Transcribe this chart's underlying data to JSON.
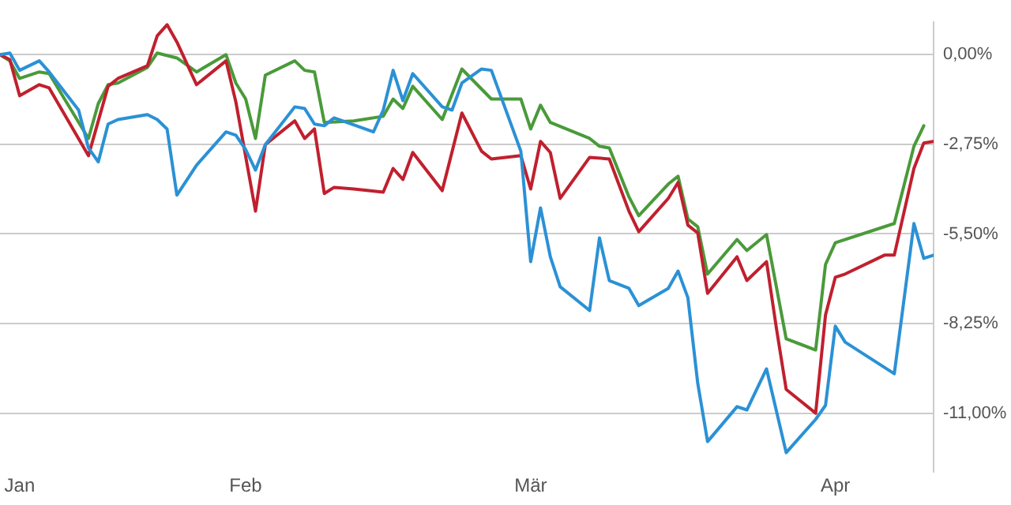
{
  "chart_data": {
    "type": "line",
    "xlim": [
      "--01-07",
      "--04-11"
    ],
    "xticks": [
      {
        "value": "--01-09",
        "label": "Jan"
      },
      {
        "value": "--02-01",
        "label": "Feb"
      },
      {
        "value": "--03-01",
        "label": "Mär"
      },
      {
        "value": "--04-01",
        "label": "Apr"
      }
    ],
    "ylim": [
      -12.8,
      1.0
    ],
    "yticks": [
      {
        "value": 0,
        "label": "0,00%"
      },
      {
        "value": -2.75,
        "label": "-2,75%"
      },
      {
        "value": -5.5,
        "label": "-5,50%"
      },
      {
        "value": -8.25,
        "label": "-8,25%"
      },
      {
        "value": -11,
        "label": "-11,00%"
      }
    ],
    "grid": "y",
    "legend": false,
    "marker": "none",
    "line_style": "solid",
    "series": [
      {
        "color": "#2b91d5",
        "x": [
          "--01-07",
          "--01-08",
          "--01-09",
          "--01-11",
          "--01-12",
          "--01-15",
          "--01-16",
          "--01-17",
          "--01-18",
          "--01-19",
          "--01-22",
          "--01-23",
          "--01-24",
          "--01-25",
          "--01-27",
          "--01-30",
          "--01-31",
          "--02-01",
          "--02-02",
          "--02-03",
          "--02-06",
          "--02-07",
          "--02-08",
          "--02-09",
          "--02-10",
          "--02-14",
          "--02-15",
          "--02-16",
          "--02-17",
          "--02-18",
          "--02-21",
          "--02-22",
          "--02-23",
          "--02-25",
          "--02-26",
          "--02-29",
          "--03-01",
          "--03-02",
          "--03-03",
          "--03-04",
          "--03-07",
          "--03-08",
          "--03-09",
          "--03-11",
          "--03-12",
          "--03-15",
          "--03-16",
          "--03-17",
          "--03-18",
          "--03-19",
          "--03-22",
          "--03-23",
          "--03-25",
          "--03-27",
          "--03-30",
          "--03-31",
          "--04-01",
          "--04-02",
          "--04-07",
          "--04-09",
          "--04-10",
          "--04-11"
        ],
        "values": [
          0,
          0.05,
          -0.48,
          -0.19,
          -0.53,
          -1.7,
          -2.86,
          -3.29,
          -2.13,
          -1.99,
          -1.84,
          -1.99,
          -2.28,
          -4.31,
          -3.39,
          -2.37,
          -2.47,
          -2.91,
          -3.54,
          -2.76,
          -1.6,
          -1.65,
          -2.13,
          -2.18,
          -1.94,
          -2.37,
          -1.7,
          -0.48,
          -1.41,
          -0.58,
          -1.6,
          -1.7,
          -0.87,
          -0.44,
          -0.48,
          -2.96,
          -6.35,
          -4.7,
          -6.2,
          -7.12,
          -7.85,
          -5.62,
          -6.93,
          -7.17,
          -7.7,
          -7.17,
          -6.64,
          -7.46,
          -10.08,
          -11.87,
          -10.8,
          -10.9,
          -9.64,
          -12.21,
          -11.19,
          -10.76,
          -8.33,
          -8.82,
          -9.79,
          -5.18,
          -6.25,
          -6.15
        ]
      },
      {
        "color": "#c0202e",
        "x": [
          "--01-07",
          "--01-08",
          "--01-09",
          "--01-11",
          "--01-12",
          "--01-16",
          "--01-18",
          "--01-19",
          "--01-22",
          "--01-23",
          "--01-24",
          "--01-25",
          "--01-27",
          "--01-30",
          "--01-31",
          "--02-02",
          "--02-03",
          "--02-06",
          "--02-07",
          "--02-08",
          "--02-09",
          "--02-10",
          "--02-12",
          "--02-15",
          "--02-16",
          "--02-17",
          "--02-18",
          "--02-21",
          "--02-23",
          "--02-25",
          "--02-26",
          "--02-29",
          "--03-01",
          "--03-02",
          "--03-03",
          "--03-04",
          "--03-07",
          "--03-09",
          "--03-11",
          "--03-12",
          "--03-15",
          "--03-16",
          "--03-17",
          "--03-18",
          "--03-19",
          "--03-22",
          "--03-23",
          "--03-25",
          "--03-26",
          "--03-27",
          "--03-30",
          "--03-31",
          "--04-01",
          "--04-02",
          "--04-06",
          "--04-07",
          "--04-09",
          "--04-10",
          "--04-11"
        ],
        "values": [
          0,
          -0.15,
          -1.26,
          -0.92,
          -1.02,
          -3.1,
          -0.97,
          -0.73,
          -0.34,
          0.58,
          0.92,
          0.39,
          -0.92,
          -0.19,
          -1.45,
          -4.8,
          -2.76,
          -2.03,
          -2.57,
          -2.28,
          -4.26,
          -4.07,
          -4.12,
          -4.22,
          -3.49,
          -3.83,
          -3.0,
          -4.17,
          -1.79,
          -2.96,
          -3.2,
          -3.1,
          -4.12,
          -2.66,
          -3.0,
          -4.41,
          -3.15,
          -3.2,
          -4.8,
          -5.43,
          -4.41,
          -3.92,
          -5.23,
          -5.47,
          -7.32,
          -6.2,
          -6.93,
          -6.35,
          -8.38,
          -10.27,
          -11.0,
          -7.99,
          -6.83,
          -6.73,
          -6.15,
          -6.15,
          -3.49,
          -2.71,
          -2.66
        ]
      },
      {
        "color": "#4a9a3a",
        "x": [
          "--01-07",
          "--01-08",
          "--01-09",
          "--01-11",
          "--01-12",
          "--01-16",
          "--01-17",
          "--01-18",
          "--01-19",
          "--01-22",
          "--01-23",
          "--01-25",
          "--01-27",
          "--01-30",
          "--01-31",
          "--02-01",
          "--02-02",
          "--02-03",
          "--02-06",
          "--02-07",
          "--02-08",
          "--02-09",
          "--02-12",
          "--02-15",
          "--02-16",
          "--02-17",
          "--02-18",
          "--02-21",
          "--02-23",
          "--02-26",
          "--02-29",
          "--03-01",
          "--03-02",
          "--03-03",
          "--03-07",
          "--03-08",
          "--03-09",
          "--03-11",
          "--03-12",
          "--03-15",
          "--03-16",
          "--03-17",
          "--03-18",
          "--03-19",
          "--03-22",
          "--03-23",
          "--03-25",
          "--03-27",
          "--03-30",
          "--03-31",
          "--04-01",
          "--04-07",
          "--04-09",
          "--04-10"
        ],
        "values": [
          0,
          -0.19,
          -0.73,
          -0.53,
          -0.58,
          -2.57,
          -1.5,
          -0.92,
          -0.87,
          -0.39,
          0.05,
          -0.1,
          -0.53,
          0,
          -0.87,
          -1.36,
          -2.57,
          -0.63,
          -0.19,
          -0.48,
          -0.53,
          -2.08,
          -2.03,
          -1.89,
          -1.36,
          -1.65,
          -0.97,
          -1.99,
          -0.44,
          -1.36,
          -1.36,
          -2.28,
          -1.55,
          -2.08,
          -2.57,
          -2.81,
          -2.86,
          -4.36,
          -4.94,
          -3.97,
          -3.73,
          -5.04,
          -5.28,
          -6.73,
          -5.67,
          -6.01,
          -5.52,
          -8.72,
          -9.06,
          -6.44,
          -5.77,
          -5.18,
          -2.81,
          -2.18
        ]
      }
    ]
  }
}
